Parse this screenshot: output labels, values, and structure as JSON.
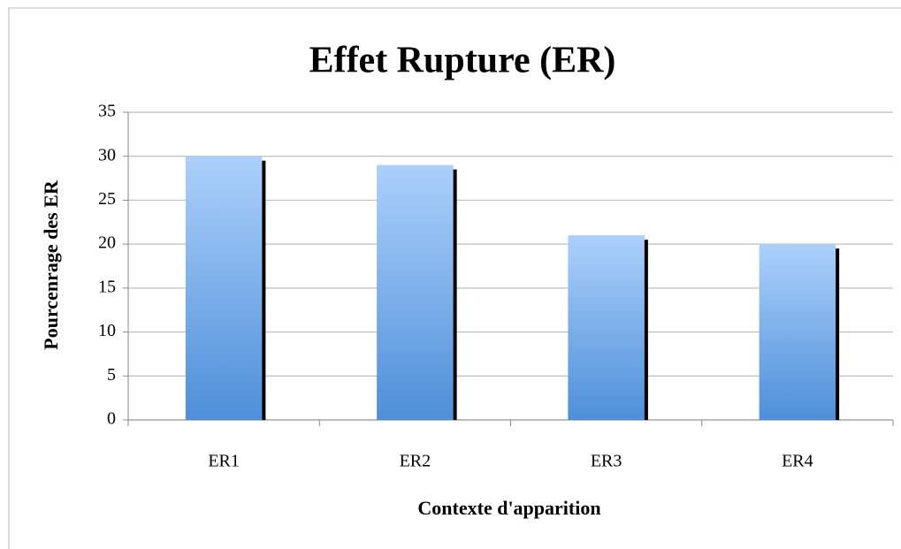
{
  "chart_data": {
    "type": "bar",
    "title": "Effet Rupture (ER)",
    "x_label": "Contexte d'apparition",
    "y_label": "Pourcenrage des ER",
    "categories": [
      "ER1",
      "ER2",
      "ER3",
      "ER4"
    ],
    "values": [
      30,
      29,
      21,
      20
    ],
    "color": "#4f8fd9",
    "ylim": [
      0,
      35
    ],
    "yticks": [
      0,
      5,
      10,
      15,
      20,
      25,
      30,
      35
    ],
    "grid": true
  }
}
